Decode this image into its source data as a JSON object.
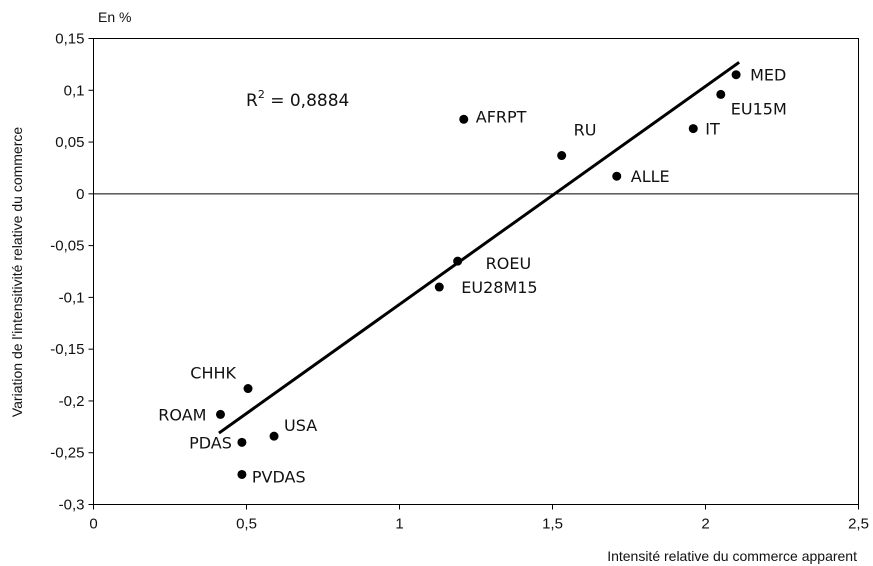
{
  "chart_data": {
    "type": "scatter",
    "unit_label": "En %",
    "xlabel": "Intensité relative du commerce apparent",
    "ylabel": "Variation de l'intensitivité relative du commerce",
    "xlim": [
      0,
      2.5
    ],
    "ylim": [
      -0.3,
      0.15
    ],
    "x_ticks": [
      0,
      0.5,
      1,
      1.5,
      2,
      2.5
    ],
    "x_tick_labels": [
      "0",
      "0,5",
      "1",
      "1,5",
      "2",
      "2,5"
    ],
    "y_ticks": [
      0.15,
      0.1,
      0.05,
      0,
      -0.05,
      -0.1,
      -0.15,
      -0.2,
      -0.25,
      -0.3
    ],
    "y_tick_labels": [
      "0,15",
      "0,1",
      "0,05",
      "0",
      "-0,05",
      "-0,1",
      "-0,15",
      "-0,2",
      "-0,25",
      "-0,3"
    ],
    "grid": false,
    "zero_line": true,
    "points": [
      {
        "label": "MED",
        "x": 2.1,
        "y": 0.115
      },
      {
        "label": "EU15M",
        "x": 2.05,
        "y": 0.096
      },
      {
        "label": "IT",
        "x": 1.96,
        "y": 0.063
      },
      {
        "label": "AFRPT",
        "x": 1.21,
        "y": 0.072
      },
      {
        "label": "RU",
        "x": 1.53,
        "y": 0.037
      },
      {
        "label": "ALLE",
        "x": 1.71,
        "y": 0.017
      },
      {
        "label": "ROEU",
        "x": 1.19,
        "y": -0.065
      },
      {
        "label": "EU28M15",
        "x": 1.13,
        "y": -0.09
      },
      {
        "label": "CHHK",
        "x": 0.505,
        "y": -0.188
      },
      {
        "label": "ROAM",
        "x": 0.415,
        "y": -0.213
      },
      {
        "label": "USA",
        "x": 0.59,
        "y": -0.234
      },
      {
        "label": "PDAS",
        "x": 0.485,
        "y": -0.24
      },
      {
        "label": "PVDAS",
        "x": 0.485,
        "y": -0.271
      }
    ],
    "trendline": {
      "x": [
        0.41,
        2.11
      ],
      "y": [
        -0.231,
        0.127
      ]
    },
    "annotation": {
      "prefix": "R",
      "superscript": "2",
      "suffix": " = 0,8884"
    }
  }
}
